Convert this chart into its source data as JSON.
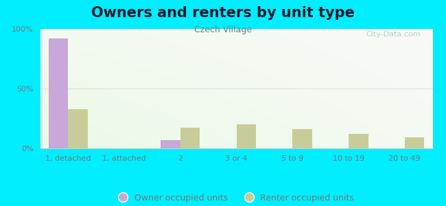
{
  "title": "Owners and renters by unit type",
  "subtitle": "Czech Village",
  "categories": [
    "1, detached",
    "1, attached",
    "2",
    "3 or 4",
    "5 to 9",
    "10 to 19",
    "20 to 49"
  ],
  "owner_values": [
    92,
    0,
    7,
    0,
    0,
    0,
    0
  ],
  "renter_values": [
    33,
    0,
    17,
    20,
    16,
    12,
    9
  ],
  "owner_color": "#c8a8d8",
  "renter_color": "#c8cc98",
  "background_color": "#00eeff",
  "bar_width": 0.35,
  "ylim": [
    0,
    100
  ],
  "yticks": [
    0,
    50,
    100
  ],
  "ytick_labels": [
    "0%",
    "50%",
    "100%"
  ],
  "legend_owner": "Owner occupied units",
  "legend_renter": "Renter occupied units",
  "title_fontsize": 15,
  "subtitle_fontsize": 9,
  "tick_fontsize": 8,
  "legend_fontsize": 9,
  "grid_color": "#dddddd",
  "tick_color": "#777777",
  "watermark": "City-Data.com",
  "watermark_color": "#aacccc"
}
